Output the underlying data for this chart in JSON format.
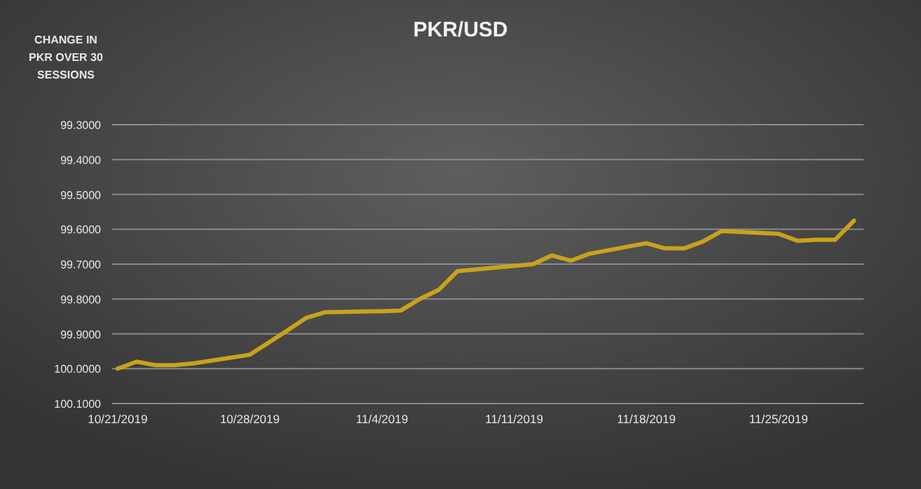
{
  "chart_data": {
    "type": "line",
    "title": "PKR/USD",
    "ylabel": "CHANGE IN PKR OVER 30 SESSIONS",
    "x": [
      "2019-10-21",
      "2019-10-22",
      "2019-10-23",
      "2019-10-24",
      "2019-10-25",
      "2019-10-28",
      "2019-10-29",
      "2019-10-30",
      "2019-10-31",
      "2019-11-01",
      "2019-11-04",
      "2019-11-05",
      "2019-11-06",
      "2019-11-07",
      "2019-11-08",
      "2019-11-11",
      "2019-11-12",
      "2019-11-13",
      "2019-11-14",
      "2019-11-15",
      "2019-11-18",
      "2019-11-19",
      "2019-11-20",
      "2019-11-21",
      "2019-11-22",
      "2019-11-25",
      "2019-11-26",
      "2019-11-27",
      "2019-11-28",
      "2019-11-29"
    ],
    "series": [
      {
        "color": "#c9a21b",
        "values": [
          100.0,
          99.98,
          99.99,
          99.99,
          99.985,
          99.96,
          99.925,
          99.89,
          99.854,
          99.838,
          99.835,
          99.833,
          99.8,
          99.774,
          99.72,
          99.705,
          99.7,
          99.675,
          99.69,
          99.67,
          99.64,
          99.655,
          99.655,
          99.635,
          99.605,
          99.613,
          99.633,
          99.63,
          99.63,
          99.575
        ]
      }
    ],
    "xlim": [
      "2019-10-20T17:00",
      "2019-11-29T12:00"
    ],
    "xticks": [
      {
        "value": "2019-10-21",
        "label": "10/21/2019"
      },
      {
        "value": "2019-10-28",
        "label": "10/28/2019"
      },
      {
        "value": "2019-11-04",
        "label": "11/4/2019"
      },
      {
        "value": "2019-11-11",
        "label": "11/11/2019"
      },
      {
        "value": "2019-11-18",
        "label": "11/18/2019"
      },
      {
        "value": "2019-11-25",
        "label": "11/25/2019"
      }
    ],
    "ylim": [
      100.1,
      99.3
    ],
    "yticks": [
      {
        "value": 99.3,
        "label": "99.3000"
      },
      {
        "value": 99.4,
        "label": "99.4000"
      },
      {
        "value": 99.5,
        "label": "99.5000"
      },
      {
        "value": 99.6,
        "label": "99.6000"
      },
      {
        "value": 99.7,
        "label": "99.7000"
      },
      {
        "value": 99.8,
        "label": "99.8000"
      },
      {
        "value": 99.9,
        "label": "99.9000"
      },
      {
        "value": 100.0,
        "label": "100.0000"
      },
      {
        "value": 100.1,
        "label": "100.1000"
      }
    ],
    "grid": "y",
    "marker": "none",
    "line_style": "solid"
  }
}
